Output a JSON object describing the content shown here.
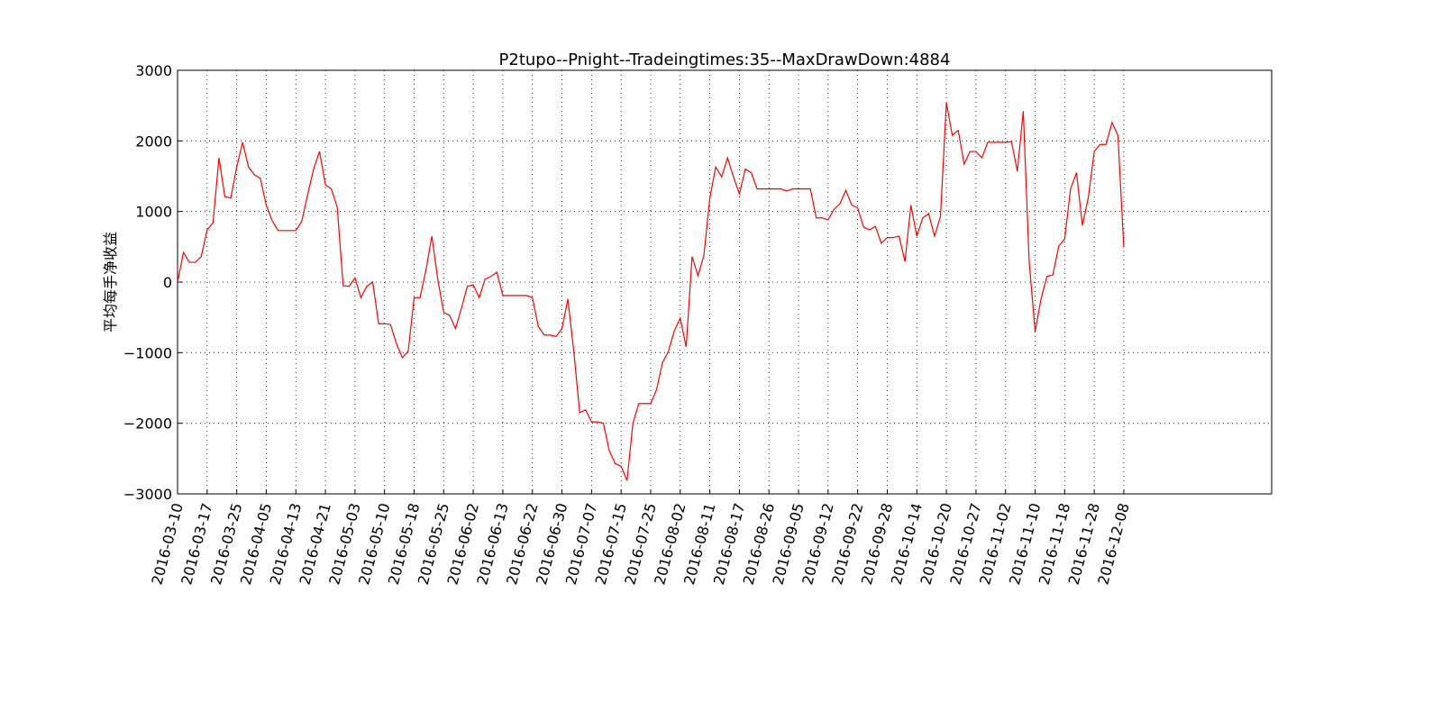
{
  "chart_data": {
    "type": "line",
    "title": "P2tupo--Pnight--Tradeingtimes:35--MaxDrawDown:4884",
    "y_label": "平均每手净收益",
    "x": [
      0,
      1,
      2,
      3,
      4,
      5,
      6,
      7,
      8,
      9,
      10,
      11,
      12,
      13,
      14,
      15,
      16,
      17,
      18,
      19,
      20,
      21,
      22,
      23,
      24,
      25,
      26,
      27,
      28,
      29,
      30,
      31,
      32,
      33,
      34,
      35,
      36,
      37,
      38,
      39,
      40,
      41,
      42,
      43,
      44,
      45,
      46,
      47,
      48,
      49,
      50,
      51,
      52,
      53,
      54,
      55,
      56,
      57,
      58,
      59,
      60,
      61,
      62,
      63,
      64,
      65,
      66,
      67,
      68,
      69,
      70,
      71,
      72,
      73,
      74,
      75,
      76,
      77,
      78,
      79,
      80,
      81,
      82,
      83,
      84,
      85,
      86,
      87,
      88,
      89,
      90,
      91,
      92,
      93,
      94,
      95,
      96,
      97,
      98,
      99,
      100,
      101,
      102,
      103,
      104,
      105,
      106,
      107,
      108,
      109,
      110,
      111,
      112,
      113,
      114,
      115,
      116,
      117,
      118,
      119,
      120,
      121,
      122,
      123,
      124,
      125,
      126,
      127,
      128,
      129,
      130,
      131,
      132,
      133,
      134,
      135,
      136,
      137,
      138,
      139,
      140,
      141,
      142,
      143,
      144,
      145,
      146,
      147,
      148,
      149,
      150,
      151,
      152,
      153,
      154,
      155,
      156,
      157,
      158,
      159,
      160
    ],
    "series": [
      {
        "color": "#ff0000",
        "values": [
          0,
          420,
          280,
          280,
          360,
          740,
          840,
          1760,
          1210,
          1190,
          1630,
          1980,
          1630,
          1520,
          1470,
          1090,
          870,
          730,
          730,
          730,
          730,
          860,
          1240,
          1600,
          1850,
          1380,
          1320,
          1060,
          -50,
          -60,
          60,
          -220,
          -60,
          0,
          -590,
          -590,
          -600,
          -870,
          -1070,
          -980,
          -220,
          -220,
          170,
          650,
          40,
          -430,
          -470,
          -660,
          -370,
          -60,
          -40,
          -220,
          40,
          80,
          140,
          -190,
          -190,
          -190,
          -190,
          -190,
          -220,
          -630,
          -750,
          -750,
          -770,
          -660,
          -240,
          -980,
          -1850,
          -1810,
          -1980,
          -1980,
          -2000,
          -2390,
          -2570,
          -2610,
          -2810,
          -2000,
          -1720,
          -1720,
          -1720,
          -1520,
          -1140,
          -980,
          -690,
          -510,
          -920,
          360,
          90,
          380,
          1190,
          1630,
          1490,
          1760,
          1490,
          1250,
          1600,
          1550,
          1320,
          1320,
          1320,
          1320,
          1320,
          1290,
          1320,
          1320,
          1320,
          1320,
          910,
          910,
          880,
          1030,
          1110,
          1300,
          1090,
          1050,
          780,
          740,
          790,
          550,
          630,
          630,
          650,
          290,
          1090,
          650,
          910,
          970,
          650,
          930,
          2540,
          2080,
          2150,
          1670,
          1850,
          1850,
          1760,
          1980,
          1980,
          1980,
          1980,
          1990,
          1570,
          2420,
          290,
          -700,
          -240,
          80,
          100,
          510,
          610,
          1320,
          1550,
          800,
          1200,
          1850,
          1950,
          1950,
          2260,
          2080,
          490
        ]
      }
    ],
    "xlim": [
      0,
      185
    ],
    "xticks": [
      {
        "value": 0,
        "label": "2016-03-10"
      },
      {
        "value": 5,
        "label": "2016-03-17"
      },
      {
        "value": 10,
        "label": "2016-03-25"
      },
      {
        "value": 15,
        "label": "2016-04-05"
      },
      {
        "value": 20,
        "label": "2016-04-13"
      },
      {
        "value": 25,
        "label": "2016-04-21"
      },
      {
        "value": 30,
        "label": "2016-05-03"
      },
      {
        "value": 35,
        "label": "2016-05-10"
      },
      {
        "value": 40,
        "label": "2016-05-18"
      },
      {
        "value": 45,
        "label": "2016-05-25"
      },
      {
        "value": 50,
        "label": "2016-06-02"
      },
      {
        "value": 55,
        "label": "2016-06-13"
      },
      {
        "value": 60,
        "label": "2016-06-22"
      },
      {
        "value": 65,
        "label": "2016-06-30"
      },
      {
        "value": 70,
        "label": "2016-07-07"
      },
      {
        "value": 75,
        "label": "2016-07-15"
      },
      {
        "value": 80,
        "label": "2016-07-25"
      },
      {
        "value": 85,
        "label": "2016-08-02"
      },
      {
        "value": 90,
        "label": "2016-08-11"
      },
      {
        "value": 95,
        "label": "2016-08-17"
      },
      {
        "value": 100,
        "label": "2016-08-26"
      },
      {
        "value": 105,
        "label": "2016-09-05"
      },
      {
        "value": 110,
        "label": "2016-09-12"
      },
      {
        "value": 115,
        "label": "2016-09-22"
      },
      {
        "value": 120,
        "label": "2016-09-28"
      },
      {
        "value": 125,
        "label": "2016-10-14"
      },
      {
        "value": 130,
        "label": "2016-10-20"
      },
      {
        "value": 135,
        "label": "2016-10-27"
      },
      {
        "value": 140,
        "label": "2016-11-02"
      },
      {
        "value": 145,
        "label": "2016-11-10"
      },
      {
        "value": 150,
        "label": "2016-11-18"
      },
      {
        "value": 155,
        "label": "2016-11-28"
      },
      {
        "value": 160,
        "label": "2016-12-08"
      }
    ],
    "ylim": [
      -3000,
      3000
    ],
    "yticks": [
      {
        "value": -3000,
        "label": "−3000"
      },
      {
        "value": -2000,
        "label": "−2000"
      },
      {
        "value": -1000,
        "label": "−1000"
      },
      0,
      1000,
      2000,
      3000
    ],
    "grid": true
  }
}
